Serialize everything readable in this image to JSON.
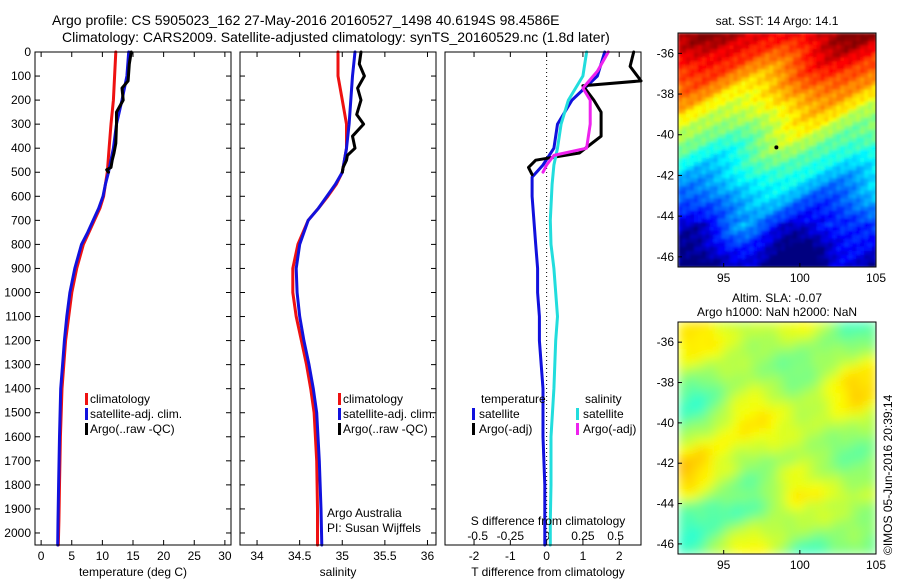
{
  "header": {
    "line1": "Argo profile: CS 5905023_162 27-May-2016 20160527_1498 40.6194S 98.4586E",
    "line2": "Climatology: CARS2009. Satellite-adjusted climatology: synTS_20160529.nc (1.8d later)"
  },
  "colors": {
    "climatology": "#ee1111",
    "satellite": "#1111dd",
    "argo": "#000000",
    "sal_satellite": "#22dddd",
    "sal_argo": "#ee22ee"
  },
  "chart_data": [
    {
      "type": "line",
      "panel": "temperature",
      "xlabel": "temperature (deg C)",
      "xlim": [
        -1,
        31
      ],
      "xticks": [
        0,
        5,
        10,
        15,
        20,
        25,
        30
      ],
      "ylim": [
        0,
        2050
      ],
      "yticks": [
        0,
        100,
        200,
        300,
        400,
        500,
        600,
        700,
        800,
        900,
        1000,
        1100,
        1200,
        1300,
        1400,
        1500,
        1600,
        1700,
        1800,
        1900,
        2000
      ],
      "y_reversed": true,
      "legend": {
        "position": "lower-center",
        "entries": [
          "climatology",
          "satellite-adj. clim.",
          "Argo(..raw -QC)"
        ]
      },
      "series": [
        {
          "name": "climatology",
          "color_key": "climatology",
          "x": [
            12.2,
            12.0,
            11.8,
            11.4,
            11.1,
            10.8,
            10.5,
            10.2,
            9.6,
            8.7,
            7.8,
            6.9,
            5.8,
            5.0,
            4.5,
            4.0,
            3.7,
            3.4,
            3.15,
            3.0,
            2.9,
            2.8
          ],
          "y": [
            0,
            100,
            200,
            300,
            400,
            500,
            550,
            600,
            650,
            700,
            750,
            800,
            900,
            1000,
            1100,
            1200,
            1300,
            1400,
            1600,
            1800,
            1950,
            2050
          ]
        },
        {
          "name": "satellite-adj. clim.",
          "color_key": "satellite",
          "x": [
            14.3,
            14.0,
            13.2,
            12.3,
            11.8,
            11.0,
            10.5,
            10.1,
            9.4,
            8.5,
            7.6,
            6.6,
            5.5,
            4.7,
            4.2,
            3.8,
            3.5,
            3.2,
            3.0,
            2.85,
            2.75,
            2.7
          ],
          "y": [
            0,
            100,
            200,
            300,
            400,
            500,
            550,
            600,
            650,
            700,
            750,
            800,
            900,
            1000,
            1100,
            1200,
            1300,
            1400,
            1600,
            1800,
            1950,
            2050
          ]
        },
        {
          "name": "Argo(..raw -QC)",
          "color_key": "argo",
          "x": [
            14.7,
            14.4,
            14.2,
            13.2,
            13.4,
            12.3,
            12.3,
            12.2,
            11.9,
            11.6,
            11.4,
            10.7,
            11.0
          ],
          "y": [
            0,
            50,
            120,
            150,
            200,
            250,
            300,
            380,
            420,
            450,
            480,
            490,
            500
          ]
        }
      ]
    },
    {
      "type": "line",
      "panel": "salinity",
      "xlabel": "salinity",
      "xlim": [
        33.8,
        36.1
      ],
      "xticks": [
        34,
        34.5,
        35,
        35.5,
        36
      ],
      "ylim": [
        0,
        2050
      ],
      "y_reversed": true,
      "legend": {
        "position": "lower-center",
        "entries": [
          "climatology",
          "satellite-adj. clim.",
          "Argo(..raw -QC)"
        ]
      },
      "annotations": [
        "Argo Australia",
        "PI: Susan Wijffels"
      ],
      "series": [
        {
          "name": "climatology",
          "color_key": "climatology",
          "x": [
            34.95,
            34.95,
            35.0,
            35.05,
            35.05,
            35.0,
            34.93,
            34.83,
            34.72,
            34.6,
            34.48,
            34.42,
            34.42,
            34.46,
            34.52,
            34.58,
            34.63,
            34.67,
            34.7,
            34.71,
            34.71
          ],
          "y": [
            0,
            100,
            200,
            300,
            400,
            500,
            550,
            600,
            650,
            700,
            800,
            900,
            1000,
            1100,
            1200,
            1300,
            1400,
            1500,
            1700,
            1900,
            2050
          ]
        },
        {
          "name": "satellite-adj. clim.",
          "color_key": "satellite",
          "x": [
            35.15,
            35.12,
            35.1,
            35.08,
            35.05,
            35.0,
            34.92,
            34.82,
            34.72,
            34.6,
            34.5,
            34.46,
            34.47,
            34.5,
            34.55,
            34.61,
            34.66,
            34.7,
            34.73,
            34.75,
            34.76
          ],
          "y": [
            0,
            100,
            200,
            300,
            400,
            500,
            550,
            600,
            650,
            700,
            800,
            900,
            1000,
            1100,
            1200,
            1300,
            1400,
            1500,
            1700,
            1900,
            2050
          ]
        },
        {
          "name": "Argo(..raw -QC)",
          "color_key": "argo",
          "x": [
            35.22,
            35.2,
            35.26,
            35.18,
            35.22,
            35.17,
            35.25,
            35.12,
            35.15,
            35.06,
            35.05,
            35.01,
            35.0
          ],
          "y": [
            0,
            50,
            100,
            150,
            200,
            260,
            300,
            350,
            400,
            430,
            450,
            480,
            500
          ]
        }
      ]
    },
    {
      "type": "line",
      "panel": "difference",
      "xlabel": "T difference from climatology",
      "xlabel_top": "S difference from climatology",
      "xlim": [
        -2.8,
        2.6
      ],
      "xticks": [
        -2,
        -1,
        0,
        1,
        2
      ],
      "xticks_top": [
        "-0.5",
        "-0.25",
        "0",
        "0.25",
        "0.5"
      ],
      "ylim": [
        0,
        2050
      ],
      "y_reversed": true,
      "legend": {
        "position": "lower-center",
        "temperature_title": "temperature",
        "salinity_title": "salinity",
        "entries": [
          "satellite",
          "Argo(-adj)",
          "satellite",
          "Argo(-adj)"
        ]
      },
      "series": [
        {
          "name": "temperature satellite",
          "color_key": "satellite",
          "x": [
            1.6,
            1.4,
            0.7,
            0.3,
            0.2,
            -0.1,
            -0.4,
            -0.4,
            -0.35,
            -0.3,
            -0.25,
            -0.25,
            -0.2,
            -0.2,
            -0.1,
            -0.1,
            -0.05,
            -0.05
          ],
          "y": [
            0,
            100,
            200,
            300,
            400,
            470,
            520,
            600,
            700,
            800,
            900,
            1000,
            1100,
            1200,
            1400,
            1600,
            1800,
            2050
          ]
        },
        {
          "name": "temperature Argo(-adj)",
          "color_key": "argo",
          "x": [
            2.4,
            2.3,
            2.6,
            1.0,
            1.3,
            1.5,
            1.5,
            0.9,
            -0.3,
            -0.5,
            -0.4
          ],
          "y": [
            0,
            60,
            120,
            140,
            200,
            250,
            350,
            420,
            450,
            480,
            510
          ]
        },
        {
          "name": "salinity satellite",
          "color_key": "sal_satellite",
          "x": [
            1.1,
            1.0,
            0.6,
            0.4,
            0.3,
            0.2,
            0.15,
            0.1,
            0.12,
            0.2,
            0.25,
            0.3,
            0.25,
            0.2,
            0.12,
            0.12,
            0.1,
            0.1
          ],
          "y": [
            0,
            100,
            200,
            300,
            400,
            470,
            550,
            700,
            800,
            900,
            1000,
            1100,
            1200,
            1400,
            1600,
            1800,
            1950,
            2050
          ]
        },
        {
          "name": "salinity Argo(-adj)",
          "color_key": "sal_argo",
          "x": [
            1.7,
            1.4,
            1.0,
            1.2,
            1.2,
            1.1,
            0.2,
            0.0,
            -0.1
          ],
          "y": [
            0,
            80,
            150,
            200,
            300,
            400,
            430,
            470,
            500
          ]
        }
      ]
    },
    {
      "type": "heatmap",
      "panel": "sst-map",
      "title": "sat. SST: 14 Argo: 14.1",
      "xlim": [
        92,
        105
      ],
      "ylim": [
        -46.5,
        -35
      ],
      "xticks": [
        95,
        100,
        105
      ],
      "yticks": [
        -36,
        -38,
        -40,
        -42,
        -44,
        -46
      ],
      "marker": {
        "x": 98.4586,
        "y": -40.6194
      }
    },
    {
      "type": "heatmap",
      "panel": "sla-map",
      "title_line1": "Altim. SLA: -0.07",
      "title_line2": "Argo h1000: NaN h2000: NaN",
      "xlim": [
        92,
        105
      ],
      "ylim": [
        -46.5,
        -35
      ],
      "xticks": [
        95,
        100,
        105
      ],
      "yticks": [
        -36,
        -38,
        -40,
        -42,
        -44,
        -46
      ]
    }
  ],
  "credit": "©IMOS 05-Jun-2016 20:39:14"
}
